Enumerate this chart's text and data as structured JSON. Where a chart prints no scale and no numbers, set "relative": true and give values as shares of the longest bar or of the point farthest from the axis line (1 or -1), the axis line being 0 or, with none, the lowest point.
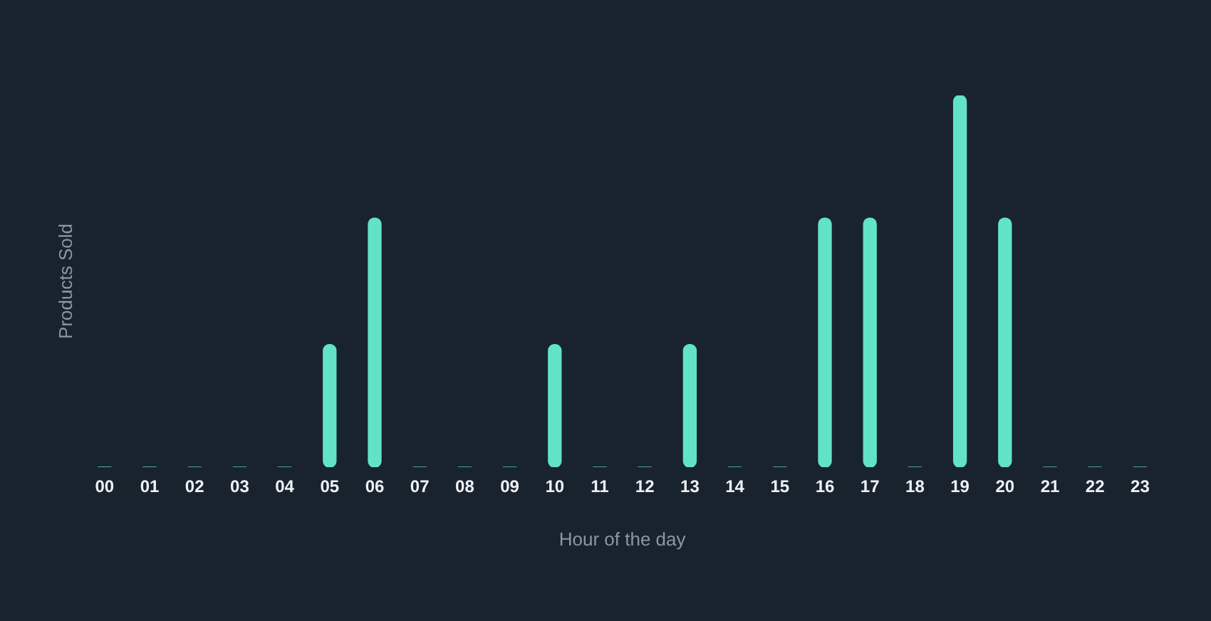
{
  "chart_data": {
    "type": "bar",
    "xlabel": "Hour of the day",
    "ylabel": "Products Sold",
    "categories": [
      "00",
      "01",
      "02",
      "03",
      "04",
      "05",
      "06",
      "07",
      "08",
      "09",
      "10",
      "11",
      "12",
      "13",
      "14",
      "15",
      "16",
      "17",
      "18",
      "19",
      "20",
      "21",
      "22",
      "23"
    ],
    "values": [
      0,
      0,
      0,
      0,
      0,
      0.33,
      0.67,
      0,
      0,
      0,
      0.33,
      0,
      0,
      0.33,
      0,
      0,
      0.67,
      0.67,
      0,
      1,
      0.67,
      0,
      0,
      0
    ],
    "color": "#62e3c7",
    "relative": true
  }
}
